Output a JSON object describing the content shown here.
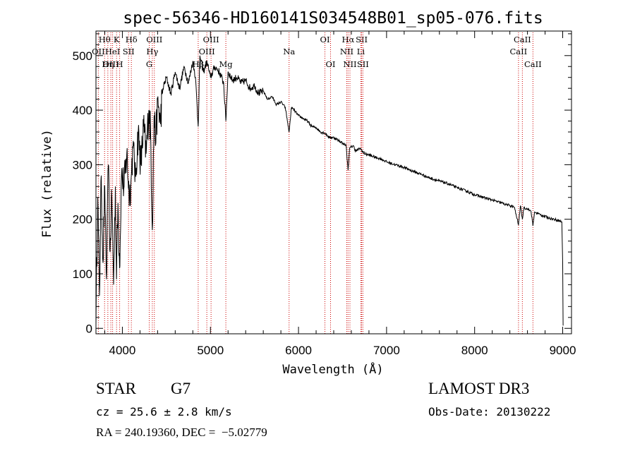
{
  "chart_data": {
    "type": "line",
    "title": "spec-56346-HD160141S034548B01_sp05-076.fits",
    "xlabel": "Wavelength (Å)",
    "ylabel": "Flux (relative)",
    "xlim": [
      3700,
      9100
    ],
    "ylim": [
      -10,
      545
    ],
    "xticks": [
      4000,
      5000,
      6000,
      7000,
      8000,
      9000
    ],
    "yticks": [
      0,
      100,
      200,
      300,
      400,
      500
    ],
    "series": [
      {
        "name": "flux",
        "x": [
          3700,
          3720,
          3740,
          3760,
          3780,
          3800,
          3820,
          3840,
          3860,
          3880,
          3900,
          3920,
          3933,
          3950,
          3968,
          3990,
          4020,
          4050,
          4080,
          4101,
          4120,
          4150,
          4180,
          4210,
          4240,
          4270,
          4300,
          4320,
          4340,
          4360,
          4380,
          4400,
          4430,
          4460,
          4500,
          4550,
          4600,
          4650,
          4700,
          4750,
          4800,
          4830,
          4861,
          4880,
          4920,
          4960,
          5000,
          5050,
          5100,
          5150,
          5175,
          5200,
          5250,
          5300,
          5350,
          5400,
          5450,
          5500,
          5550,
          5600,
          5650,
          5700,
          5750,
          5800,
          5850,
          5893,
          5920,
          5950,
          6000,
          6050,
          6100,
          6150,
          6200,
          6250,
          6300,
          6350,
          6400,
          6450,
          6500,
          6540,
          6563,
          6580,
          6620,
          6650,
          6700,
          6750,
          6800,
          6850,
          6900,
          6950,
          7000,
          7100,
          7200,
          7300,
          7400,
          7500,
          7600,
          7700,
          7800,
          7900,
          8000,
          8100,
          8200,
          8300,
          8400,
          8450,
          8498,
          8520,
          8542,
          8560,
          8600,
          8640,
          8662,
          8680,
          8700,
          8750,
          8800,
          8850,
          8900,
          8950,
          8990,
          9000,
          9005
        ],
        "y": [
          5,
          240,
          60,
          280,
          120,
          260,
          90,
          300,
          140,
          240,
          80,
          260,
          90,
          230,
          110,
          280,
          260,
          320,
          240,
          280,
          330,
          280,
          360,
          300,
          370,
          320,
          400,
          360,
          180,
          390,
          340,
          420,
          380,
          440,
          460,
          430,
          470,
          440,
          480,
          450,
          490,
          460,
          370,
          500,
          470,
          490,
          460,
          480,
          470,
          450,
          380,
          470,
          455,
          460,
          450,
          455,
          440,
          445,
          430,
          435,
          420,
          425,
          410,
          415,
          405,
          360,
          405,
          400,
          390,
          385,
          380,
          370,
          368,
          360,
          358,
          350,
          350,
          345,
          340,
          335,
          290,
          330,
          335,
          325,
          330,
          320,
          318,
          315,
          312,
          310,
          305,
          300,
          295,
          288,
          282,
          275,
          270,
          265,
          258,
          252,
          245,
          240,
          235,
          230,
          225,
          222,
          190,
          225,
          200,
          222,
          218,
          215,
          188,
          213,
          212,
          208,
          205,
          202,
          200,
          198,
          195,
          120,
          5
        ]
      }
    ],
    "spectral_lines": [
      {
        "label": "Hθ",
        "wavelength": 3798,
        "row": 1
      },
      {
        "label": "OII",
        "wavelength": 3727,
        "row": 2
      },
      {
        "label": "OIII",
        "wavelength": 3869,
        "row": 3
      },
      {
        "label": "Hη",
        "wavelength": 3835,
        "row": 3
      },
      {
        "label": "K",
        "wavelength": 3934,
        "row": 1
      },
      {
        "label": "HeI",
        "wavelength": 3889,
        "row": 2
      },
      {
        "label": "SII",
        "wavelength": 4070,
        "row": 2
      },
      {
        "label": "H",
        "wavelength": 3969,
        "row": 3
      },
      {
        "label": "Hδ",
        "wavelength": 4102,
        "row": 1
      },
      {
        "label": "OIII",
        "wavelength": 4363,
        "row": 1
      },
      {
        "label": "Hγ",
        "wavelength": 4340,
        "row": 2
      },
      {
        "label": "G",
        "wavelength": 4305,
        "row": 3
      },
      {
        "label": "Hβ",
        "wavelength": 4861,
        "row": 3
      },
      {
        "label": "OIII",
        "wavelength": 5007,
        "row": 1
      },
      {
        "label": "OIII",
        "wavelength": 4959,
        "row": 2
      },
      {
        "label": "Mg",
        "wavelength": 5175,
        "row": 3
      },
      {
        "label": "Na",
        "wavelength": 5893,
        "row": 2
      },
      {
        "label": "OI",
        "wavelength": 6300,
        "row": 1
      },
      {
        "label": "OI",
        "wavelength": 6364,
        "row": 3
      },
      {
        "label": "Hα",
        "wavelength": 6563,
        "row": 1
      },
      {
        "label": "NII",
        "wavelength": 6548,
        "row": 2
      },
      {
        "label": "NII",
        "wavelength": 6584,
        "row": 3
      },
      {
        "label": "SII",
        "wavelength": 6717,
        "row": 1
      },
      {
        "label": "Li",
        "wavelength": 6708,
        "row": 2
      },
      {
        "label": "SII",
        "wavelength": 6731,
        "row": 3
      },
      {
        "label": "CaII",
        "wavelength": 8542,
        "row": 1
      },
      {
        "label": "CaII",
        "wavelength": 8498,
        "row": 2
      },
      {
        "label": "CaII",
        "wavelength": 8662,
        "row": 3
      }
    ]
  },
  "info": {
    "class_label": "STAR",
    "subclass": "G7",
    "survey": "LAMOST DR3",
    "cz_line": "cz = 25.6 ± 2.8 km/s",
    "obs_date": "Obs-Date: 20130222",
    "radec_line": "RA = 240.19360, DEC =  −5.02779"
  },
  "colors": {
    "line_marker": "#cc0000",
    "spectrum": "#000000",
    "axes": "#000000"
  }
}
